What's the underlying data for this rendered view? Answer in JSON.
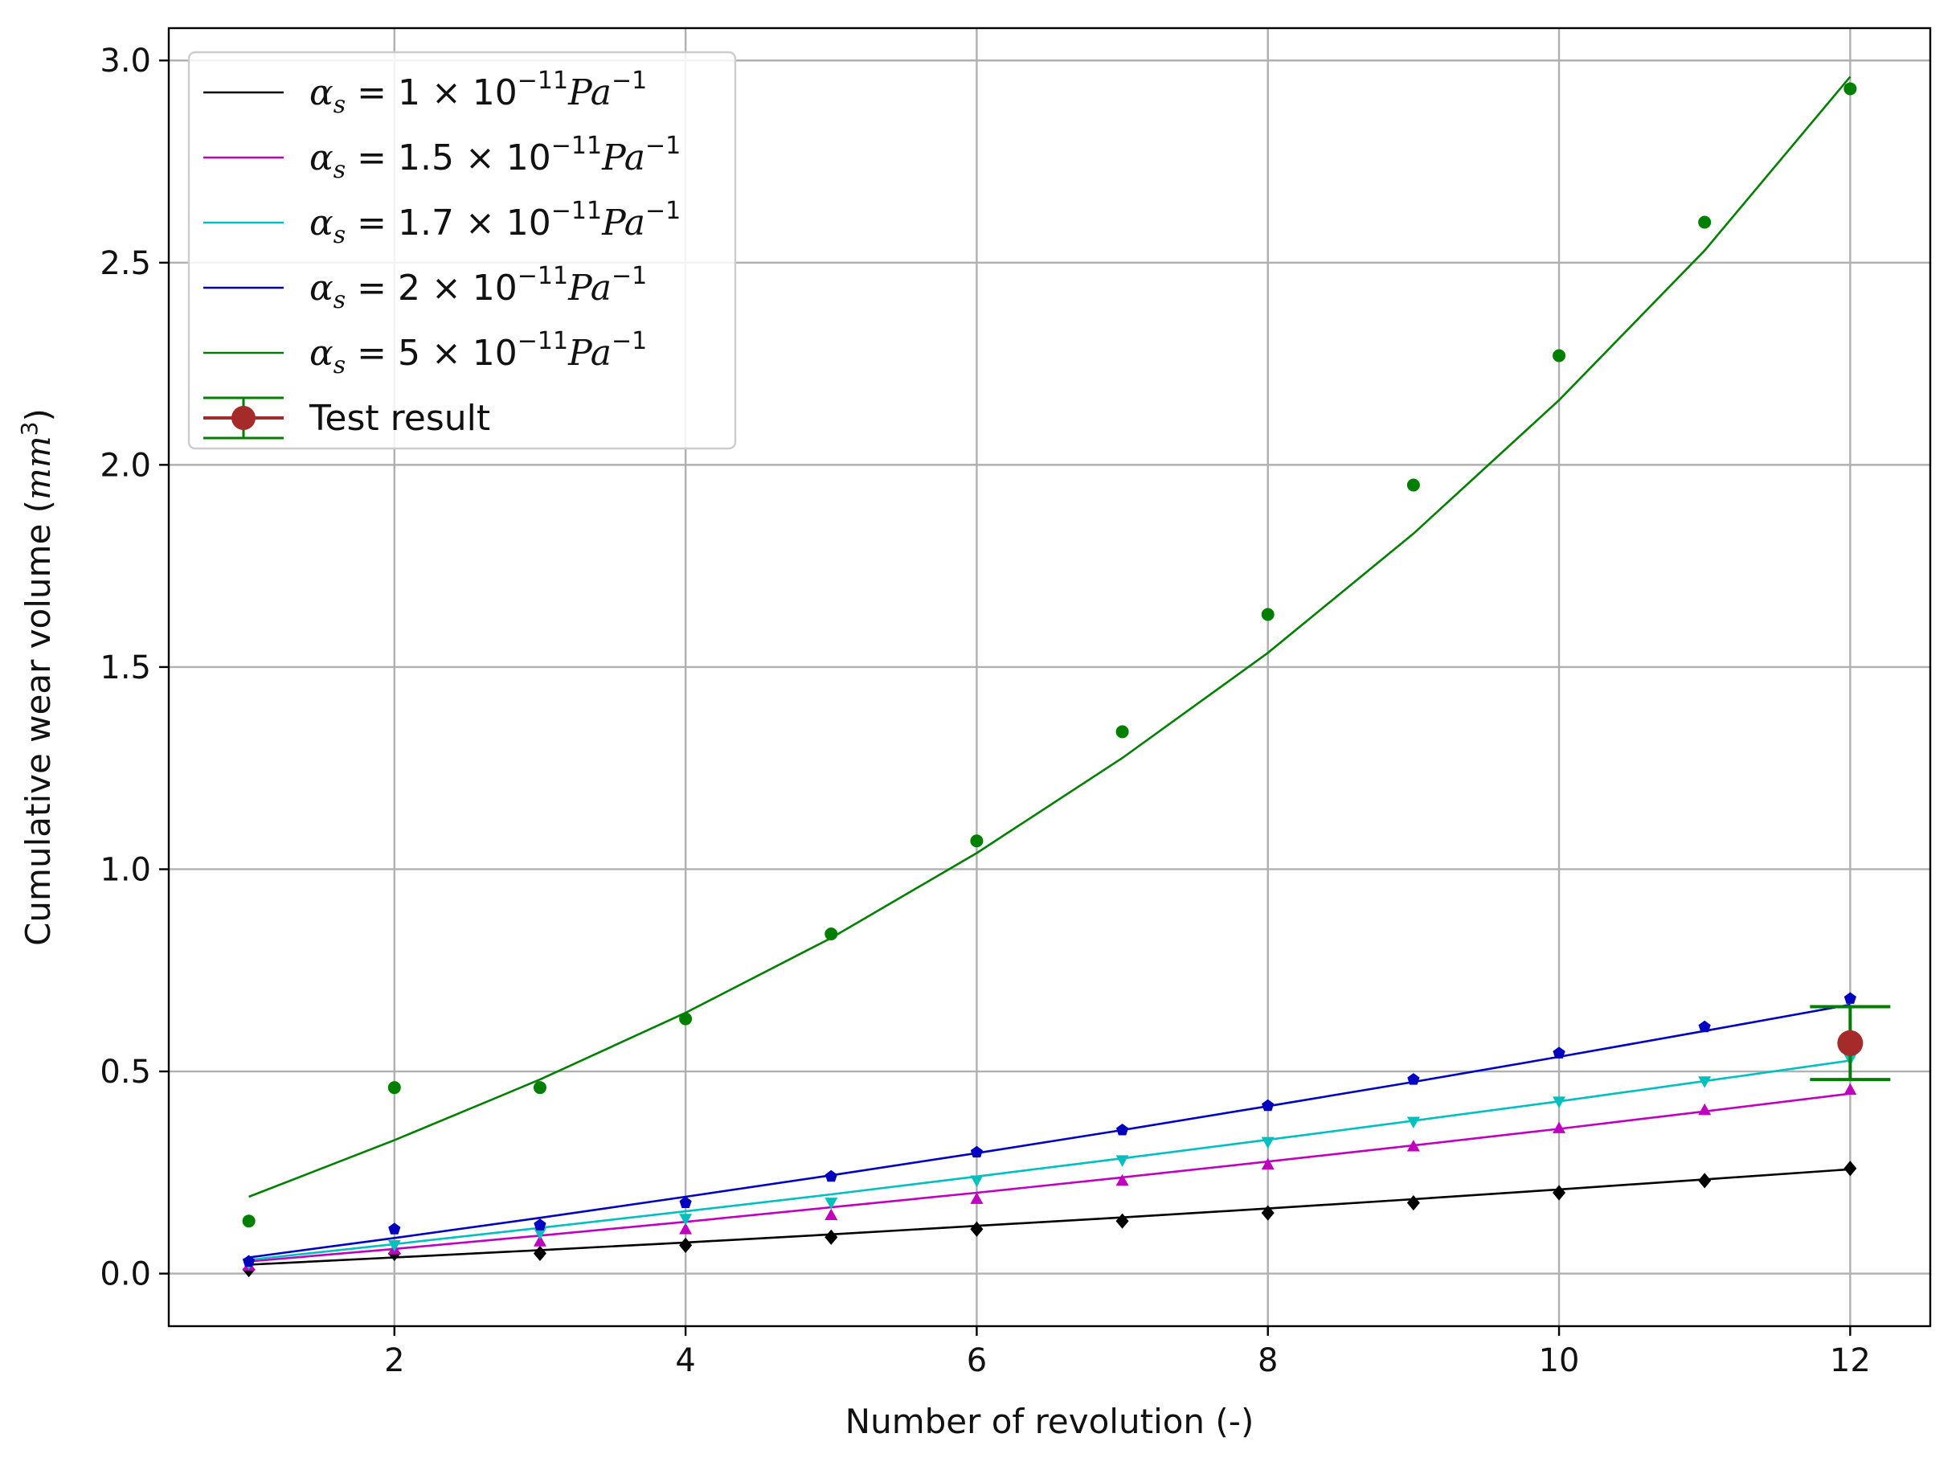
{
  "chart_data": {
    "type": "line",
    "xlabel": "Number of revolution (-)",
    "ylabel_main": "Cumulative wear volume (",
    "ylabel_unit": "mm",
    "ylabel_sup": "3",
    "ylabel_close": ")",
    "xlim": [
      0.45,
      12.55
    ],
    "ylim": [
      -0.13,
      3.08
    ],
    "xticks": [
      2,
      4,
      6,
      8,
      10,
      12
    ],
    "yticks": [
      0.0,
      0.5,
      1.0,
      1.5,
      2.0,
      2.5,
      3.0
    ],
    "xtick_labels": [
      "2",
      "4",
      "6",
      "8",
      "10",
      "12"
    ],
    "ytick_labels": [
      "0.0",
      "0.5",
      "1.0",
      "1.5",
      "2.0",
      "2.5",
      "3.0"
    ],
    "grid": true,
    "legend_position": "top-left",
    "x": [
      1,
      2,
      3,
      4,
      5,
      6,
      7,
      8,
      9,
      10,
      11,
      12
    ],
    "series": [
      {
        "label": {
          "sym": "α",
          "sub": "s",
          "eq": " = ",
          "coef": "1",
          "times": " × 10",
          "exp": "−11",
          "unit": "Pa",
          "uexp": "−1"
        },
        "color": "#000000",
        "marker": "diamond",
        "points": [
          0.01,
          0.05,
          0.05,
          0.07,
          0.09,
          0.11,
          0.13,
          0.15,
          0.175,
          0.2,
          0.23,
          0.26
        ],
        "fit": [
          0.022,
          0.04,
          0.058,
          0.077,
          0.097,
          0.118,
          0.139,
          0.161,
          0.184,
          0.208,
          0.233,
          0.258
        ]
      },
      {
        "label": {
          "sym": "α",
          "sub": "s",
          "eq": " = ",
          "coef": "1.5",
          "times": " × 10",
          "exp": "−11",
          "unit": "Pa",
          "uexp": "−1"
        },
        "color": "#bf00bf",
        "marker": "triangle-up",
        "points": [
          0.02,
          0.06,
          0.08,
          0.11,
          0.145,
          0.185,
          0.23,
          0.27,
          0.315,
          0.36,
          0.405,
          0.455
        ],
        "fit": [
          0.03,
          0.061,
          0.094,
          0.128,
          0.164,
          0.2,
          0.238,
          0.277,
          0.317,
          0.358,
          0.401,
          0.445
        ]
      },
      {
        "label": {
          "sym": "α",
          "sub": "s",
          "eq": " = ",
          "coef": "1.7",
          "times": " × 10",
          "exp": "−11",
          "unit": "Pa",
          "uexp": "−1"
        },
        "color": "#00bfbf",
        "marker": "triangle-down",
        "points": [
          0.025,
          0.07,
          0.1,
          0.135,
          0.175,
          0.23,
          0.28,
          0.325,
          0.375,
          0.425,
          0.475,
          0.53
        ],
        "fit": [
          0.034,
          0.073,
          0.113,
          0.154,
          0.196,
          0.24,
          0.285,
          0.331,
          0.378,
          0.426,
          0.476,
          0.527
        ]
      },
      {
        "label": {
          "sym": "α",
          "sub": "s",
          "eq": " = ",
          "coef": "2",
          "times": " × 10",
          "exp": "−11",
          "unit": "Pa",
          "uexp": "−1"
        },
        "color": "#0000bf",
        "marker": "pentagon",
        "points": [
          0.03,
          0.11,
          0.12,
          0.175,
          0.24,
          0.3,
          0.355,
          0.415,
          0.48,
          0.545,
          0.61,
          0.68
        ],
        "fit": [
          0.04,
          0.088,
          0.138,
          0.19,
          0.243,
          0.298,
          0.355,
          0.414,
          0.474,
          0.536,
          0.6,
          0.665
        ]
      },
      {
        "label": {
          "sym": "α",
          "sub": "s",
          "eq": " = ",
          "coef": "5",
          "times": " × 10",
          "exp": "−11",
          "unit": "Pa",
          "uexp": "−1"
        },
        "color": "#007f00",
        "marker": "circle",
        "points": [
          0.13,
          0.46,
          0.46,
          0.63,
          0.84,
          1.07,
          1.34,
          1.63,
          1.95,
          2.27,
          2.6,
          2.93
        ],
        "fit": [
          0.19,
          0.33,
          0.48,
          0.645,
          0.83,
          1.04,
          1.275,
          1.535,
          1.83,
          2.16,
          2.53,
          2.96
        ]
      }
    ],
    "test_result": {
      "label": "Test result",
      "x": 12,
      "y": 0.57,
      "err": 0.09,
      "marker_color": "#a52a2a",
      "bar_color": "#007f00"
    }
  }
}
